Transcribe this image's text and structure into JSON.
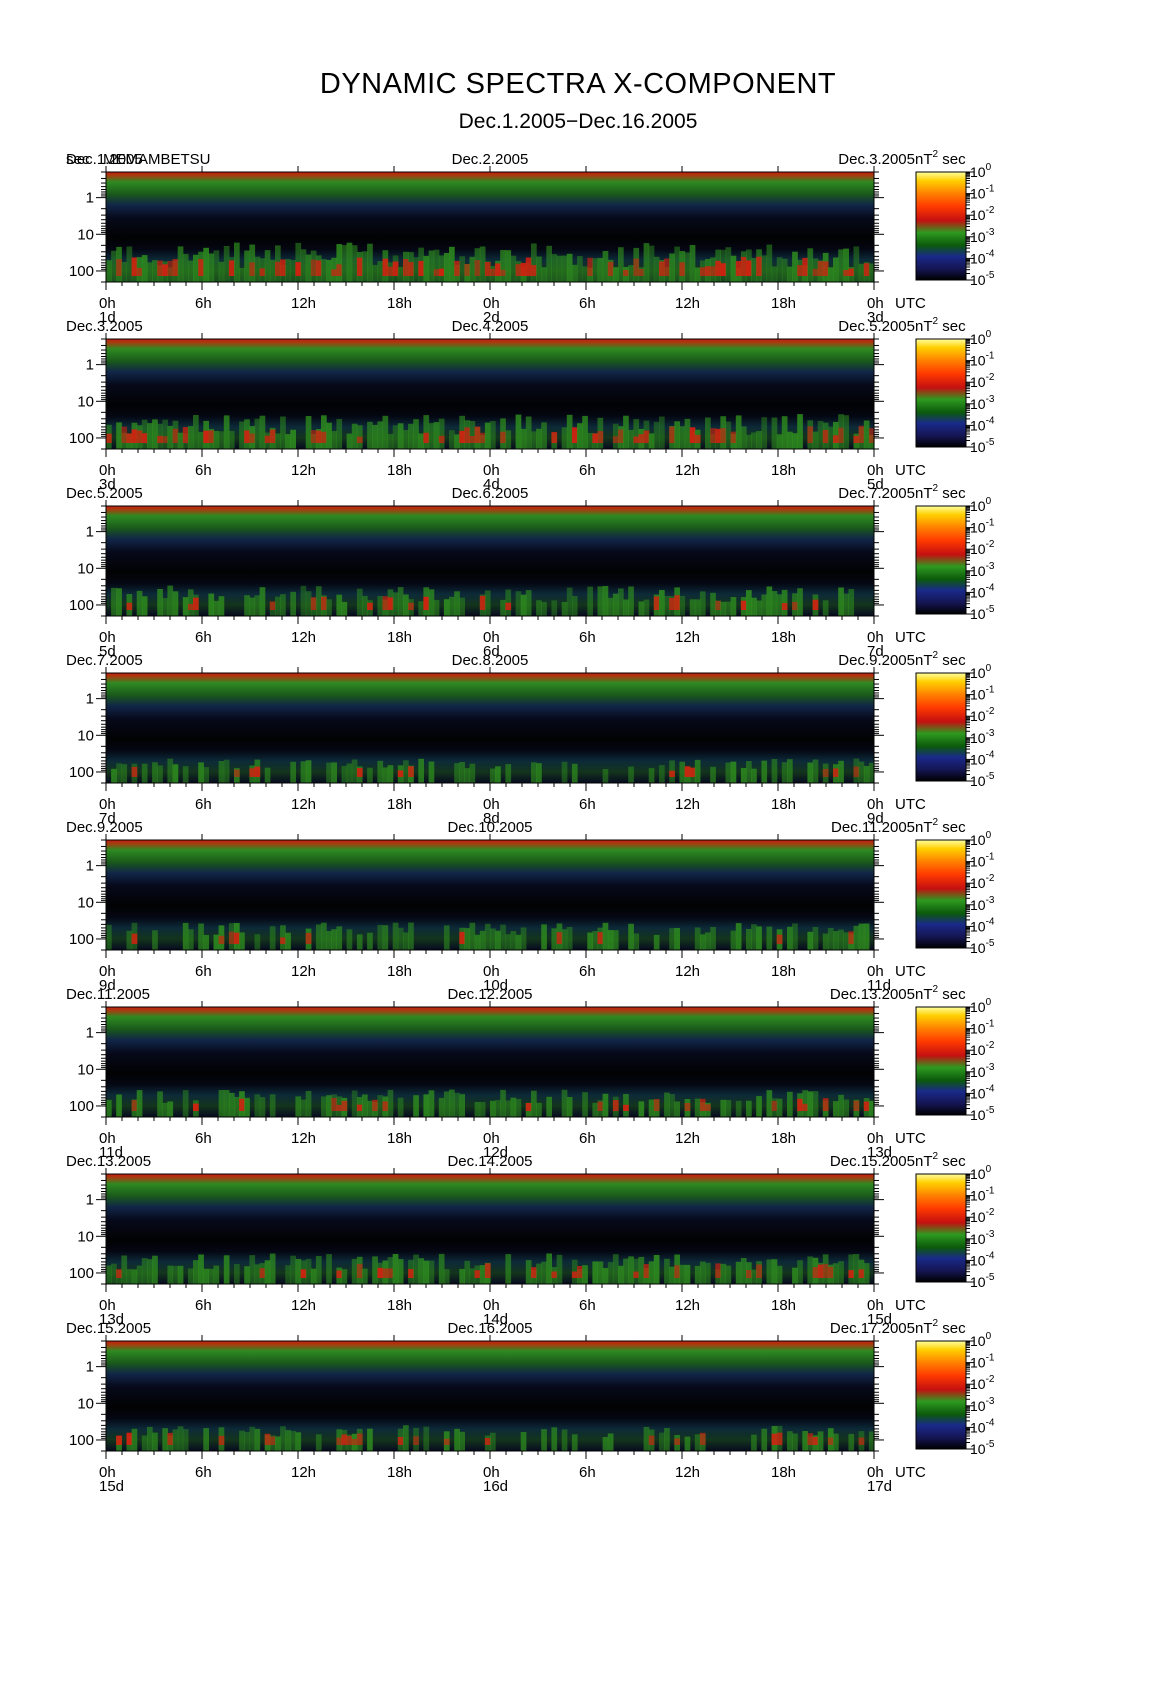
{
  "title": "DYNAMIC SPECTRA X-COMPONENT",
  "subtitle": "Dec.1.2005−Dec.16.2005",
  "chart_data": {
    "type": "heatmap",
    "station": "MEMAMBETSU",
    "ylabel": "sec",
    "y_axis": {
      "scale": "log",
      "range": [
        0.2,
        200
      ],
      "inverted": true,
      "tick_labels": [
        "1",
        "10",
        "100"
      ]
    },
    "x_tick_labels": [
      "0h",
      "6h",
      "12h",
      "18h",
      "0h",
      "6h",
      "12h",
      "18h",
      "0h"
    ],
    "x_unit": "UTC",
    "colorbar": {
      "unit_label": "nT",
      "unit_exponent": "2",
      "unit_suffix": " sec",
      "scale": "log",
      "ticks": [
        {
          "base": "10",
          "exp": "0"
        },
        {
          "base": "10",
          "exp": "-1"
        },
        {
          "base": "10",
          "exp": "-2"
        },
        {
          "base": "10",
          "exp": "-3"
        },
        {
          "base": "10",
          "exp": "-4"
        },
        {
          "base": "10",
          "exp": "-5"
        }
      ],
      "colors": [
        "#000000",
        "#141450",
        "#1a2a8a",
        "#0b5a0b",
        "#2e9a20",
        "#c41010",
        "#ff3a00",
        "#ff8000",
        "#ffd000",
        "#ffffa0"
      ]
    },
    "panels": [
      {
        "start_date": "Dec.1.2005",
        "mid_date": "Dec.2.2005",
        "end_date": "Dec.3.2005",
        "day_labels": [
          "1d",
          "2d",
          "3d"
        ],
        "activity": 0.85
      },
      {
        "start_date": "Dec.3.2005",
        "mid_date": "Dec.4.2005",
        "end_date": "Dec.5.2005",
        "day_labels": [
          "3d",
          "4d",
          "5d"
        ],
        "activity": 0.7
      },
      {
        "start_date": "Dec.5.2005",
        "mid_date": "Dec.6.2005",
        "end_date": "Dec.7.2005",
        "day_labels": [
          "5d",
          "6d",
          "7d"
        ],
        "activity": 0.55
      },
      {
        "start_date": "Dec.7.2005",
        "mid_date": "Dec.8.2005",
        "end_date": "Dec.9.2005",
        "day_labels": [
          "7d",
          "8d",
          "9d"
        ],
        "activity": 0.35
      },
      {
        "start_date": "Dec.9.2005",
        "mid_date": "Dec.10.2005",
        "end_date": "Dec.11.2005",
        "day_labels": [
          "9d",
          "10d",
          "11d"
        ],
        "activity": 0.45
      },
      {
        "start_date": "Dec.11.2005",
        "mid_date": "Dec.12.2005",
        "end_date": "Dec.13.2005",
        "day_labels": [
          "11d",
          "12d",
          "13d"
        ],
        "activity": 0.45
      },
      {
        "start_date": "Dec.13.2005",
        "mid_date": "Dec.14.2005",
        "end_date": "Dec.15.2005",
        "day_labels": [
          "13d",
          "14d",
          "15d"
        ],
        "activity": 0.55
      },
      {
        "start_date": "Dec.15.2005",
        "mid_date": "Dec.16.2005",
        "end_date": "Dec.17.2005",
        "day_labels": [
          "15d",
          "16d",
          "17d"
        ],
        "activity": 0.4
      }
    ]
  }
}
